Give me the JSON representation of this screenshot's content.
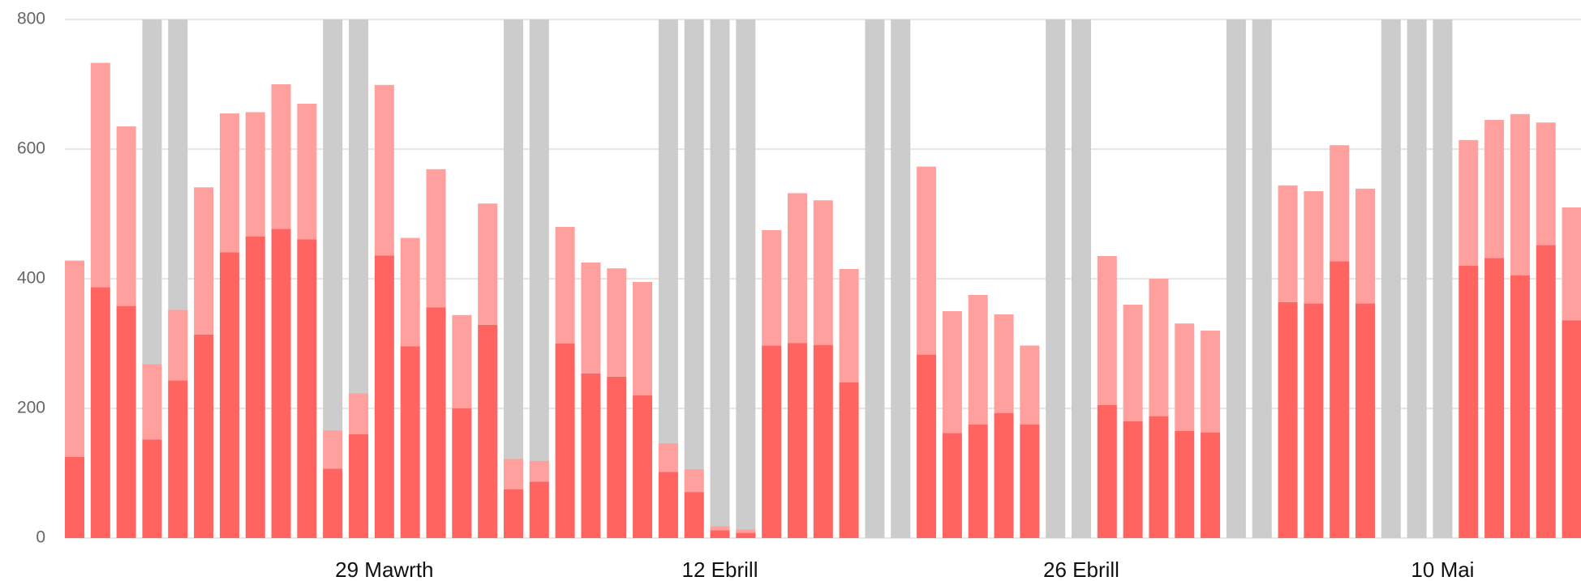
{
  "chart_data": {
    "type": "bar",
    "categories": [
      null,
      null,
      null,
      null,
      null,
      null,
      null,
      null,
      null,
      null,
      null,
      null,
      "29 Mawrth",
      null,
      null,
      null,
      null,
      null,
      null,
      null,
      null,
      null,
      null,
      null,
      null,
      "12 Ebrill",
      null,
      null,
      null,
      null,
      null,
      null,
      null,
      null,
      null,
      null,
      null,
      null,
      null,
      "26 Ebrill",
      null,
      null,
      null,
      null,
      null,
      null,
      null,
      null,
      null,
      null,
      null,
      null,
      null,
      "10 Mai",
      null,
      null,
      null,
      null,
      null
    ],
    "series": [
      {
        "color": "#cccccc",
        "overlay": true,
        "values": [
          null,
          null,
          null,
          800,
          800,
          null,
          null,
          null,
          null,
          null,
          800,
          800,
          null,
          null,
          null,
          null,
          null,
          800,
          800,
          null,
          null,
          null,
          null,
          800,
          800,
          800,
          800,
          null,
          null,
          null,
          null,
          800,
          800,
          null,
          null,
          null,
          null,
          null,
          800,
          800,
          null,
          null,
          null,
          null,
          null,
          800,
          800,
          null,
          null,
          null,
          null,
          800,
          800,
          800,
          null,
          null,
          null,
          null,
          null
        ]
      },
      {
        "color": "#ff6461",
        "values": [
          125,
          387,
          358,
          152,
          243,
          314,
          441,
          465,
          477,
          461,
          107,
          160,
          436,
          296,
          356,
          200,
          329,
          75,
          87,
          300,
          254,
          249,
          220,
          102,
          71,
          12,
          8,
          297,
          301,
          298,
          240,
          null,
          null,
          283,
          162,
          175,
          193,
          175,
          null,
          null,
          205,
          180,
          188,
          165,
          163,
          null,
          null,
          364,
          362,
          427,
          362,
          null,
          null,
          null,
          420,
          432,
          405,
          452,
          336
        ]
      },
      {
        "color": "#ffa09e",
        "values": [
          303,
          346,
          277,
          116,
          109,
          227,
          214,
          192,
          223,
          209,
          59,
          63,
          263,
          167,
          213,
          144,
          187,
          47,
          32,
          180,
          171,
          167,
          175,
          44,
          35,
          6,
          5,
          178,
          231,
          223,
          175,
          null,
          null,
          290,
          188,
          200,
          152,
          122,
          null,
          null,
          230,
          180,
          212,
          166,
          157,
          null,
          null,
          180,
          173,
          179,
          177,
          null,
          null,
          null,
          194,
          213,
          249,
          189,
          174
        ]
      }
    ],
    "ylim": [
      0,
      800
    ],
    "yticks": [
      0,
      200,
      400,
      600,
      800
    ],
    "grid": true
  }
}
